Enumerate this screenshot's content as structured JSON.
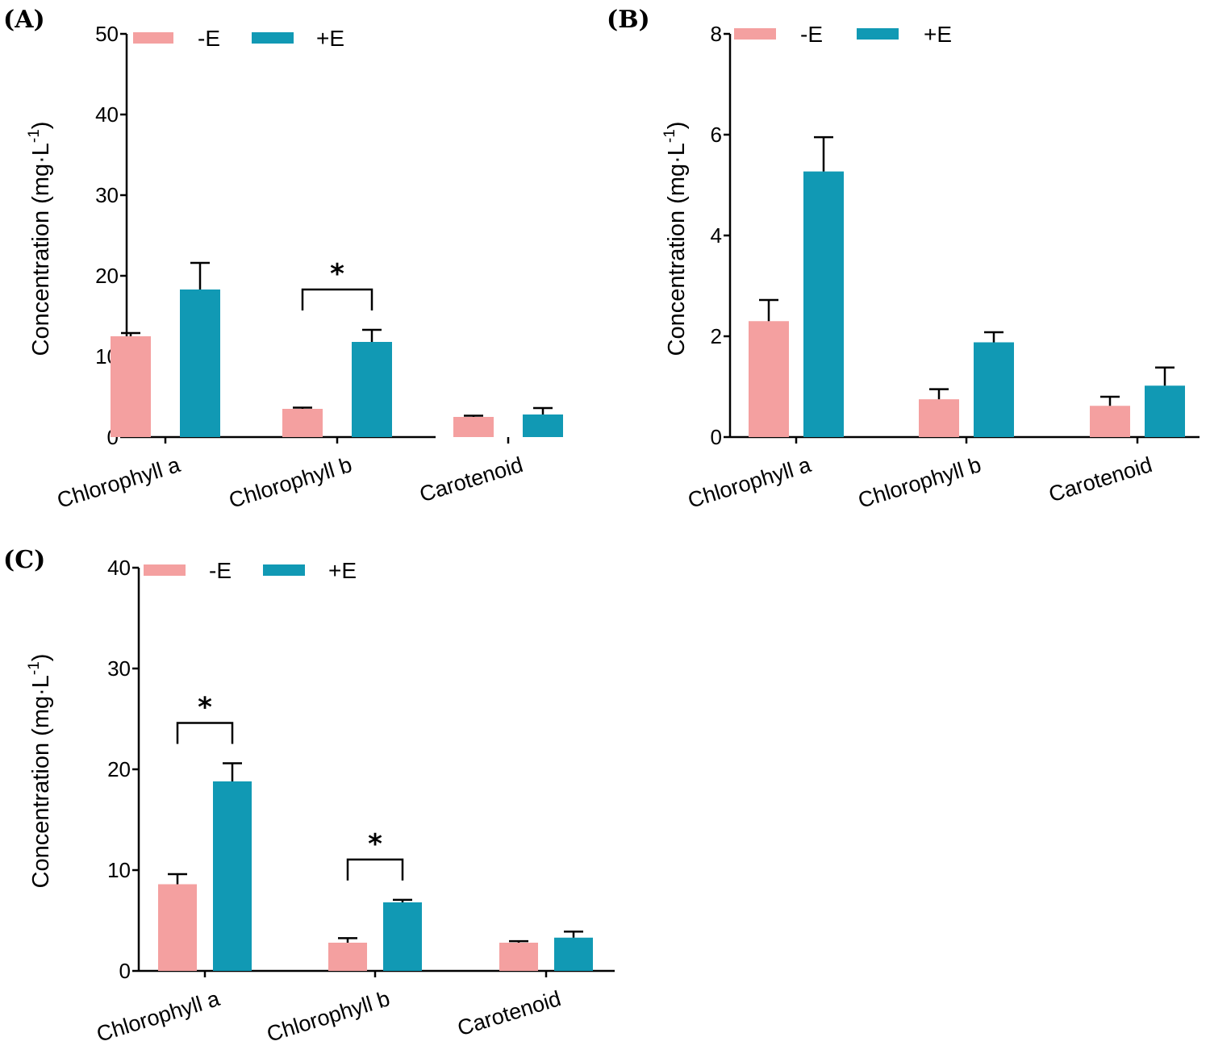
{
  "chart_data": [
    {
      "panel": "(A)",
      "type": "bar",
      "categories": [
        "Chlorophyll a",
        "Chlorophyll b",
        "Carotenoid"
      ],
      "series": [
        {
          "name": "-E",
          "color": "#f4a0a0",
          "values": [
            12.5,
            3.5,
            2.5
          ],
          "errors": [
            0.4,
            0.15,
            0.15
          ]
        },
        {
          "name": "+E",
          "color": "#1199b4",
          "values": [
            18.3,
            11.8,
            2.8
          ],
          "errors": [
            3.3,
            1.5,
            0.8
          ]
        }
      ],
      "ylabel": "Concentration (mg·L",
      "ylabel_sup": "-1",
      "ylabel_end": ")",
      "ylim": [
        0,
        50
      ],
      "yticks": [
        "0",
        "10",
        "20",
        "30",
        "40",
        "50"
      ],
      "significance": [
        {
          "category": "Chlorophyll b",
          "label": "*"
        }
      ],
      "legend": "top-left"
    },
    {
      "panel": "(B)",
      "type": "bar",
      "categories": [
        "Chlorophyll a",
        "Chlorophyll b",
        "Carotenoid"
      ],
      "series": [
        {
          "name": "-E",
          "color": "#f4a0a0",
          "values": [
            2.3,
            0.75,
            0.62
          ],
          "errors": [
            0.42,
            0.2,
            0.18
          ]
        },
        {
          "name": "+E",
          "color": "#1199b4",
          "values": [
            5.27,
            1.88,
            1.02
          ],
          "errors": [
            0.68,
            0.2,
            0.36
          ]
        }
      ],
      "ylabel": "Concentration (mg·L",
      "ylabel_sup": "-1",
      "ylabel_end": ")",
      "ylim": [
        0,
        8
      ],
      "yticks": [
        "0",
        "2",
        "4",
        "6",
        "8"
      ],
      "significance": [],
      "legend": "top-left"
    },
    {
      "panel": "(C)",
      "type": "bar",
      "categories": [
        "Chlorophyll a",
        "Chlorophyll b",
        "Carotenoid"
      ],
      "series": [
        {
          "name": "-E",
          "color": "#f4a0a0",
          "values": [
            8.6,
            2.8,
            2.8
          ],
          "errors": [
            1.0,
            0.45,
            0.15
          ]
        },
        {
          "name": "+E",
          "color": "#1199b4",
          "values": [
            18.8,
            6.8,
            3.3
          ],
          "errors": [
            1.8,
            0.25,
            0.6
          ]
        }
      ],
      "ylabel": "Concentration (mg·L",
      "ylabel_sup": "-1",
      "ylabel_end": ")",
      "ylim": [
        0,
        40
      ],
      "yticks": [
        "0",
        "10",
        "20",
        "30",
        "40"
      ],
      "significance": [
        {
          "category": "Chlorophyll a",
          "label": "*"
        },
        {
          "category": "Chlorophyll b",
          "label": "*"
        }
      ],
      "legend": "top-left"
    }
  ]
}
